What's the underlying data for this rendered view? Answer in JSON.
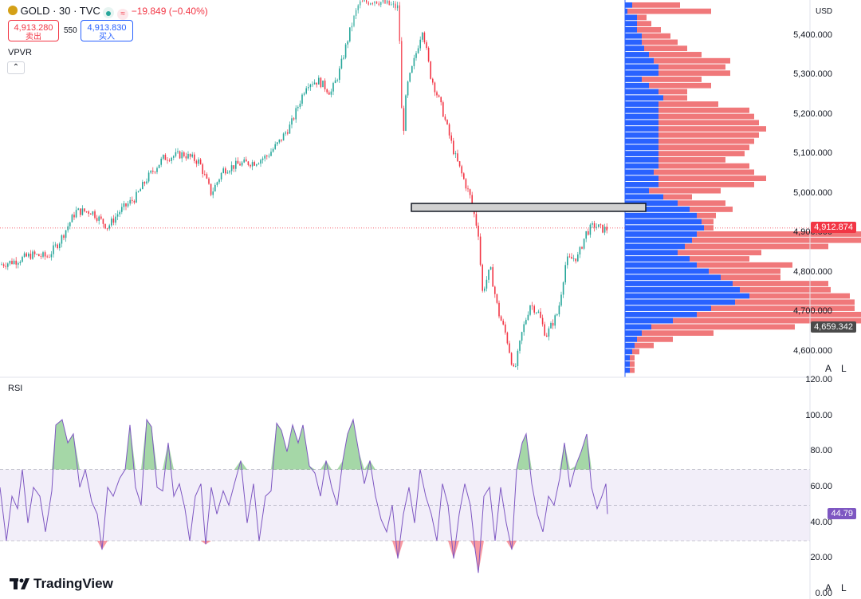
{
  "symbol": {
    "title": "GOLD · 30 · TVC",
    "change": "−19.849 (−0.40%)",
    "sell_price": "4,913.280",
    "sell_label": "卖出",
    "spread": "550",
    "buy_price": "4,913.830",
    "buy_label": "买入"
  },
  "indicator_vpvr": "VPVR",
  "indicator_rsi": "RSI",
  "currency": "USD",
  "watermark": "TradingView",
  "scale_buttons": [
    "A",
    "L"
  ],
  "colors": {
    "up": "#26a69a",
    "down": "#f23645",
    "rsi": "#7e57c2",
    "vp_up": "#2962ff",
    "vp_down": "#f0787a"
  },
  "chart_data": [
    {
      "type": "candlestick",
      "ylim": [
        4535,
        5490
      ],
      "y_ticks": [
        4600,
        4700,
        4800,
        4900,
        5000,
        5100,
        5200,
        5300,
        5400
      ],
      "y_tick_labels": [
        "4,600.000",
        "4,700.000",
        "4,800.000",
        "4,900.000",
        "5,000.000",
        "5,100.000",
        "5,200.000",
        "5,300.000",
        "5,400.000"
      ],
      "last_price": 4912.874,
      "last_price_label": "4,912.874",
      "poc_price": 4659.342,
      "poc_label": "4,659.342",
      "price_path": [
        [
          0,
          4820
        ],
        [
          20,
          4830
        ],
        [
          40,
          4845
        ],
        [
          60,
          4840
        ],
        [
          75,
          4880
        ],
        [
          95,
          4955
        ],
        [
          115,
          4955
        ],
        [
          135,
          4915
        ],
        [
          150,
          4955
        ],
        [
          170,
          4990
        ],
        [
          185,
          5040
        ],
        [
          205,
          5090
        ],
        [
          230,
          5100
        ],
        [
          250,
          5080
        ],
        [
          265,
          5000
        ],
        [
          280,
          5060
        ],
        [
          300,
          5075
        ],
        [
          320,
          5080
        ],
        [
          335,
          5095
        ],
        [
          350,
          5130
        ],
        [
          365,
          5175
        ],
        [
          385,
          5280
        ],
        [
          400,
          5285
        ],
        [
          415,
          5255
        ],
        [
          425,
          5305
        ],
        [
          440,
          5420
        ],
        [
          450,
          5480
        ],
        [
          470,
          5490
        ],
        [
          485,
          5480
        ],
        [
          500,
          5470
        ],
        [
          505,
          5130
        ],
        [
          510,
          5265
        ],
        [
          520,
          5340
        ],
        [
          530,
          5420
        ],
        [
          540,
          5300
        ],
        [
          555,
          5210
        ],
        [
          570,
          5100
        ],
        [
          590,
          4990
        ],
        [
          600,
          4900
        ],
        [
          605,
          4750
        ],
        [
          615,
          4810
        ],
        [
          625,
          4700
        ],
        [
          635,
          4640
        ],
        [
          645,
          4545
        ],
        [
          655,
          4650
        ],
        [
          665,
          4720
        ],
        [
          675,
          4700
        ],
        [
          685,
          4640
        ],
        [
          700,
          4700
        ],
        [
          710,
          4830
        ],
        [
          725,
          4840
        ],
        [
          735,
          4900
        ],
        [
          745,
          4920
        ],
        [
          755,
          4910
        ],
        [
          762,
          4910
        ]
      ],
      "volume_profile": {
        "band_high": 5485,
        "band_low": 4545,
        "up_volume": [
          3,
          1,
          5,
          5,
          5,
          7,
          7,
          8,
          10,
          12,
          14,
          14,
          7,
          10,
          14,
          16,
          14,
          14,
          14,
          14,
          14,
          14,
          14,
          14,
          14,
          14,
          14,
          12,
          14,
          14,
          10,
          16,
          22,
          27,
          30,
          32,
          33,
          30,
          28,
          25,
          22,
          27,
          30,
          35,
          40,
          45,
          48,
          52,
          46,
          36,
          30,
          20,
          11,
          7,
          5,
          4,
          3,
          2,
          2,
          2
        ],
        "down_volume": [
          20,
          35,
          4,
          6,
          10,
          12,
          15,
          18,
          22,
          32,
          28,
          30,
          25,
          26,
          12,
          10,
          25,
          38,
          40,
          42,
          45,
          42,
          40,
          38,
          36,
          28,
          38,
          42,
          45,
          40,
          30,
          12,
          20,
          18,
          8,
          5,
          4,
          80,
          90,
          60,
          35,
          25,
          40,
          30,
          25,
          40,
          38,
          42,
          50,
          60,
          70,
          85,
          60,
          30,
          15,
          8,
          3,
          2,
          2,
          2
        ]
      },
      "annotation_box": {
        "price_top": 4975,
        "price_bottom": 4955
      }
    },
    {
      "type": "line",
      "title": "RSI",
      "ylim": [
        0,
        120
      ],
      "y_ticks": [
        0,
        20,
        40,
        60,
        80,
        100,
        120
      ],
      "y_tick_labels": [
        "0.00",
        "20.00",
        "40.00",
        "60.00",
        "80.00",
        "100.00",
        "120.00"
      ],
      "overbought": 70,
      "oversold": 30,
      "middle": 50,
      "last_value": 44.79,
      "last_label": "44.79",
      "rsi_path": [
        [
          0,
          60
        ],
        [
          8,
          30
        ],
        [
          15,
          55
        ],
        [
          22,
          48
        ],
        [
          28,
          70
        ],
        [
          35,
          40
        ],
        [
          42,
          60
        ],
        [
          50,
          55
        ],
        [
          57,
          35
        ],
        [
          65,
          58
        ],
        [
          70,
          95
        ],
        [
          78,
          98
        ],
        [
          85,
          85
        ],
        [
          92,
          90
        ],
        [
          100,
          60
        ],
        [
          107,
          70
        ],
        [
          115,
          52
        ],
        [
          122,
          45
        ],
        [
          128,
          25
        ],
        [
          135,
          60
        ],
        [
          142,
          55
        ],
        [
          150,
          65
        ],
        [
          157,
          70
        ],
        [
          163,
          95
        ],
        [
          170,
          60
        ],
        [
          177,
          50
        ],
        [
          184,
          98
        ],
        [
          190,
          94
        ],
        [
          197,
          60
        ],
        [
          204,
          58
        ],
        [
          211,
          85
        ],
        [
          218,
          55
        ],
        [
          225,
          62
        ],
        [
          232,
          48
        ],
        [
          238,
          30
        ],
        [
          245,
          55
        ],
        [
          252,
          62
        ],
        [
          258,
          28
        ],
        [
          265,
          60
        ],
        [
          272,
          45
        ],
        [
          280,
          58
        ],
        [
          287,
          50
        ],
        [
          294,
          62
        ],
        [
          302,
          75
        ],
        [
          310,
          40
        ],
        [
          318,
          62
        ],
        [
          325,
          30
        ],
        [
          333,
          55
        ],
        [
          340,
          58
        ],
        [
          347,
          96
        ],
        [
          353,
          92
        ],
        [
          360,
          80
        ],
        [
          367,
          95
        ],
        [
          374,
          85
        ],
        [
          380,
          95
        ],
        [
          388,
          72
        ],
        [
          395,
          68
        ],
        [
          402,
          55
        ],
        [
          409,
          75
        ],
        [
          416,
          60
        ],
        [
          423,
          50
        ],
        [
          430,
          75
        ],
        [
          436,
          90
        ],
        [
          443,
          98
        ],
        [
          450,
          80
        ],
        [
          457,
          62
        ],
        [
          464,
          75
        ],
        [
          471,
          55
        ],
        [
          478,
          42
        ],
        [
          485,
          35
        ],
        [
          492,
          50
        ],
        [
          499,
          20
        ],
        [
          506,
          45
        ],
        [
          513,
          60
        ],
        [
          520,
          40
        ],
        [
          527,
          70
        ],
        [
          534,
          55
        ],
        [
          541,
          45
        ],
        [
          548,
          30
        ],
        [
          555,
          62
        ],
        [
          562,
          50
        ],
        [
          569,
          20
        ],
        [
          576,
          45
        ],
        [
          583,
          62
        ],
        [
          590,
          50
        ],
        [
          596,
          25
        ],
        [
          600,
          12
        ],
        [
          607,
          55
        ],
        [
          614,
          60
        ],
        [
          621,
          30
        ],
        [
          628,
          60
        ],
        [
          635,
          40
        ],
        [
          642,
          25
        ],
        [
          648,
          70
        ],
        [
          655,
          85
        ],
        [
          660,
          90
        ],
        [
          667,
          62
        ],
        [
          674,
          45
        ],
        [
          681,
          35
        ],
        [
          688,
          55
        ],
        [
          695,
          50
        ],
        [
          702,
          65
        ],
        [
          708,
          85
        ],
        [
          715,
          60
        ],
        [
          722,
          72
        ],
        [
          729,
          80
        ],
        [
          736,
          90
        ],
        [
          742,
          60
        ],
        [
          749,
          48
        ],
        [
          755,
          55
        ],
        [
          760,
          62
        ],
        [
          762,
          45
        ]
      ]
    }
  ]
}
